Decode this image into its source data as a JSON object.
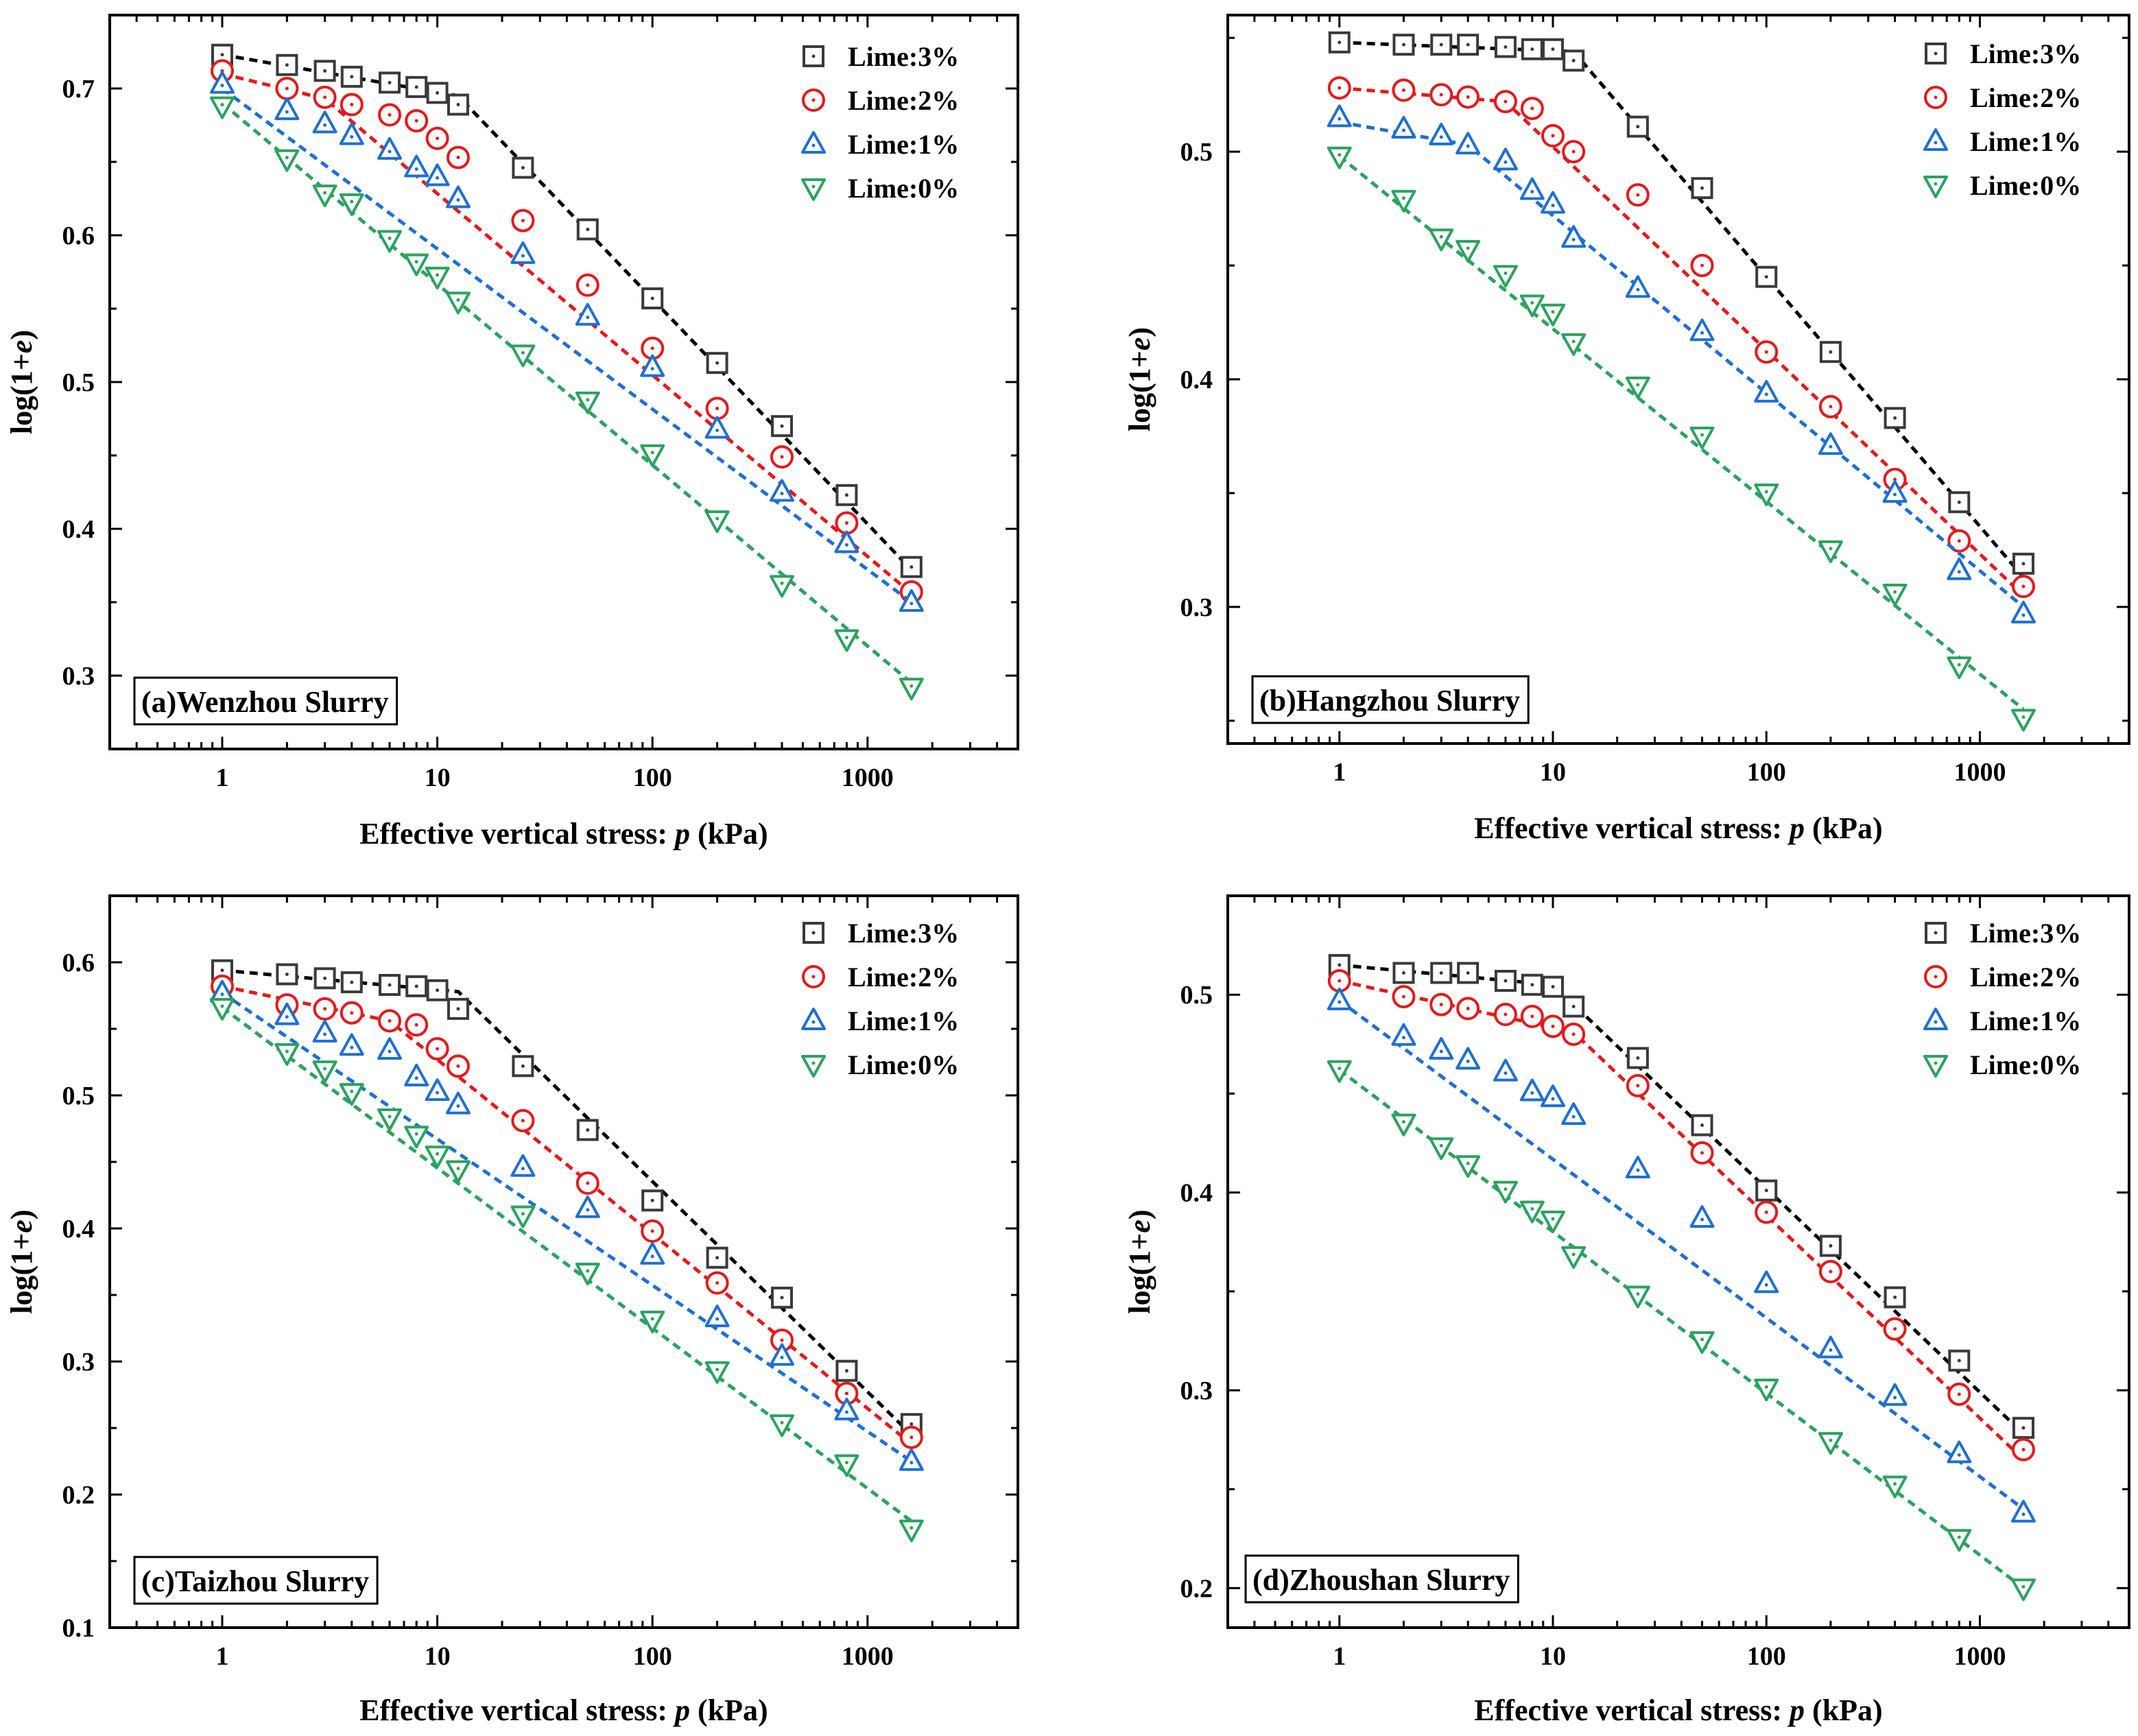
{
  "shared": {
    "xlabel_prefix": "Effective vertical stress: ",
    "xlabel_var": "p",
    "xlabel_suffix": " (kPa)",
    "ylabel_prefix": "log(1+",
    "ylabel_var": "e",
    "ylabel_suffix": ")",
    "x_ticks": [
      1,
      10,
      100,
      1000
    ],
    "x_tick_labels": [
      "1",
      "10",
      "100",
      "1000"
    ]
  },
  "styles": {
    "Lime:3%": {
      "color": "#3a3a3a",
      "line": "#000000",
      "marker": "square"
    },
    "Lime:2%": {
      "color": "#e41a1c",
      "line": "#e41a1c",
      "marker": "circle"
    },
    "Lime:1%": {
      "color": "#1f6fd1",
      "line": "#1f6fd1",
      "marker": "triangle-up"
    },
    "Lime:0%": {
      "color": "#2ca25f",
      "line": "#2ca25f",
      "marker": "triangle-down"
    }
  },
  "chart_data": [
    {
      "type": "scatter",
      "title": "(a)Wenzhou Slurry",
      "xscale": "log",
      "xlim": [
        0.3,
        5000
      ],
      "ylim": [
        0.25,
        0.75
      ],
      "y_ticks": [
        0.3,
        0.4,
        0.5,
        0.6,
        0.7
      ],
      "y_tick_labels": [
        "0.3",
        "0.4",
        "0.5",
        "0.6",
        "0.7"
      ],
      "legend": "top-right",
      "series": [
        {
          "name": "Lime:3%",
          "x": [
            1,
            2,
            3,
            4,
            6,
            8,
            10,
            12.5,
            25,
            50,
            100,
            200,
            400,
            800,
            1600
          ],
          "y": [
            0.723,
            0.716,
            0.712,
            0.708,
            0.704,
            0.701,
            0.697,
            0.689,
            0.646,
            0.604,
            0.557,
            0.513,
            0.47,
            0.423,
            0.374
          ],
          "fit": [
            [
              1,
              0.723
            ],
            [
              12.5,
              0.695
            ],
            [
              1600,
              0.372
            ]
          ]
        },
        {
          "name": "Lime:2%",
          "x": [
            1,
            2,
            3,
            4,
            6,
            8,
            10,
            12.5,
            25,
            50,
            100,
            200,
            400,
            800,
            1600
          ],
          "y": [
            0.712,
            0.7,
            0.694,
            0.689,
            0.682,
            0.678,
            0.666,
            0.653,
            0.61,
            0.566,
            0.523,
            0.482,
            0.449,
            0.404,
            0.357
          ],
          "fit": [
            [
              1,
              0.71
            ],
            [
              3,
              0.693
            ],
            [
              1600,
              0.356
            ]
          ]
        },
        {
          "name": "Lime:1%",
          "x": [
            1,
            2,
            3,
            4,
            6,
            8,
            10,
            12.5,
            25,
            50,
            100,
            200,
            400,
            800,
            1600
          ],
          "y": [
            0.703,
            0.685,
            0.676,
            0.668,
            0.658,
            0.646,
            0.64,
            0.625,
            0.587,
            0.545,
            0.51,
            0.468,
            0.425,
            0.39,
            0.35
          ],
          "fit": [
            [
              1,
              0.7
            ],
            [
              1600,
              0.35
            ]
          ]
        },
        {
          "name": "Lime:0%",
          "x": [
            1,
            2,
            3,
            4,
            6,
            8,
            10,
            12.5,
            25,
            50,
            100,
            200,
            400,
            800,
            1600
          ],
          "y": [
            0.688,
            0.652,
            0.628,
            0.622,
            0.597,
            0.581,
            0.572,
            0.555,
            0.519,
            0.487,
            0.451,
            0.406,
            0.362,
            0.325,
            0.292
          ],
          "fit": [
            [
              1,
              0.69
            ],
            [
              1600,
              0.295
            ]
          ]
        }
      ]
    },
    {
      "type": "scatter",
      "title": "(b)Hangzhou Slurry",
      "xscale": "log",
      "xlim": [
        0.3,
        5000
      ],
      "ylim": [
        0.24,
        0.56
      ],
      "y_ticks": [
        0.3,
        0.4,
        0.5
      ],
      "y_tick_labels": [
        "0.3",
        "0.4",
        "0.5"
      ],
      "legend": "top-right",
      "series": [
        {
          "name": "Lime:3%",
          "x": [
            1,
            2,
            3,
            4,
            6,
            8,
            10,
            12.5,
            25,
            50,
            100,
            200,
            400,
            800,
            1600
          ],
          "y": [
            0.548,
            0.547,
            0.547,
            0.547,
            0.546,
            0.545,
            0.545,
            0.54,
            0.511,
            0.484,
            0.445,
            0.412,
            0.383,
            0.346,
            0.319
          ],
          "fit": [
            [
              1,
              0.548
            ],
            [
              12.5,
              0.544
            ],
            [
              1600,
              0.313
            ]
          ]
        },
        {
          "name": "Lime:2%",
          "x": [
            1,
            2,
            3,
            4,
            6,
            8,
            10,
            12.5,
            25,
            50,
            100,
            200,
            400,
            800,
            1600
          ],
          "y": [
            0.528,
            0.527,
            0.525,
            0.524,
            0.522,
            0.519,
            0.507,
            0.5,
            0.481,
            0.45,
            0.412,
            0.388,
            0.356,
            0.329,
            0.309
          ],
          "fit": [
            [
              1,
              0.528
            ],
            [
              6,
              0.522
            ],
            [
              1600,
              0.305
            ]
          ]
        },
        {
          "name": "Lime:1%",
          "x": [
            1,
            2,
            3,
            4,
            6,
            8,
            10,
            12.5,
            25,
            50,
            100,
            200,
            400,
            800,
            1600
          ],
          "y": [
            0.515,
            0.51,
            0.507,
            0.503,
            0.496,
            0.483,
            0.477,
            0.462,
            0.44,
            0.421,
            0.394,
            0.371,
            0.35,
            0.316,
            0.297
          ],
          "fit": [
            [
              1,
              0.513
            ],
            [
              4,
              0.503
            ],
            [
              1600,
              0.3
            ]
          ]
        },
        {
          "name": "Lime:0%",
          "x": [
            1,
            2,
            3,
            4,
            6,
            8,
            10,
            12.5,
            25,
            50,
            100,
            200,
            400,
            800,
            1600
          ],
          "y": [
            0.498,
            0.479,
            0.462,
            0.457,
            0.446,
            0.433,
            0.429,
            0.416,
            0.397,
            0.375,
            0.35,
            0.325,
            0.306,
            0.274,
            0.251
          ],
          "fit": [
            [
              1,
              0.498
            ],
            [
              1600,
              0.255
            ]
          ]
        }
      ]
    },
    {
      "type": "scatter",
      "title": "(c)Taizhou Slurry",
      "xscale": "log",
      "xlim": [
        0.3,
        5000
      ],
      "ylim": [
        0.1,
        0.65
      ],
      "y_ticks": [
        0.1,
        0.2,
        0.3,
        0.4,
        0.5,
        0.6
      ],
      "y_tick_labels": [
        "0.1",
        "0.2",
        "0.3",
        "0.4",
        "0.5",
        "0.6"
      ],
      "legend": "top-right",
      "series": [
        {
          "name": "Lime:3%",
          "x": [
            1,
            2,
            3,
            4,
            6,
            8,
            10,
            12.5,
            25,
            50,
            100,
            200,
            400,
            800,
            1600
          ],
          "y": [
            0.594,
            0.591,
            0.588,
            0.585,
            0.583,
            0.582,
            0.579,
            0.565,
            0.522,
            0.474,
            0.421,
            0.378,
            0.348,
            0.293,
            0.253
          ],
          "fit": [
            [
              1,
              0.594
            ],
            [
              12.5,
              0.578
            ],
            [
              1600,
              0.245
            ]
          ]
        },
        {
          "name": "Lime:2%",
          "x": [
            1,
            2,
            3,
            4,
            6,
            8,
            10,
            12.5,
            25,
            50,
            100,
            200,
            400,
            800,
            1600
          ],
          "y": [
            0.582,
            0.568,
            0.565,
            0.562,
            0.556,
            0.553,
            0.535,
            0.522,
            0.481,
            0.434,
            0.398,
            0.359,
            0.316,
            0.276,
            0.243
          ],
          "fit": [
            [
              1,
              0.582
            ],
            [
              6,
              0.556
            ],
            [
              1600,
              0.238
            ]
          ]
        },
        {
          "name": "Lime:1%",
          "x": [
            1,
            2,
            3,
            4,
            6,
            8,
            10,
            12.5,
            25,
            50,
            100,
            200,
            400,
            800,
            1600
          ],
          "y": [
            0.577,
            0.56,
            0.547,
            0.537,
            0.534,
            0.514,
            0.503,
            0.493,
            0.446,
            0.415,
            0.38,
            0.333,
            0.304,
            0.263,
            0.225
          ],
          "fit": [
            [
              1,
              0.577
            ],
            [
              1600,
              0.225
            ]
          ]
        },
        {
          "name": "Lime:0%",
          "x": [
            1,
            2,
            3,
            4,
            6,
            8,
            10,
            12.5,
            25,
            50,
            100,
            200,
            400,
            800,
            1600
          ],
          "y": [
            0.566,
            0.532,
            0.519,
            0.502,
            0.483,
            0.47,
            0.455,
            0.444,
            0.41,
            0.367,
            0.331,
            0.293,
            0.253,
            0.223,
            0.174
          ],
          "fit": [
            [
              1,
              0.566
            ],
            [
              1600,
              0.18
            ]
          ]
        }
      ]
    },
    {
      "type": "scatter",
      "title": "(d)Zhoushan Slurry",
      "xscale": "log",
      "xlim": [
        0.3,
        5000
      ],
      "ylim": [
        0.18,
        0.55
      ],
      "y_ticks": [
        0.2,
        0.3,
        0.4,
        0.5
      ],
      "y_tick_labels": [
        "0.2",
        "0.3",
        "0.4",
        "0.5"
      ],
      "legend": "top-right",
      "series": [
        {
          "name": "Lime:3%",
          "x": [
            1,
            2,
            3,
            4,
            6,
            8,
            10,
            12.5,
            25,
            50,
            100,
            200,
            400,
            800,
            1600
          ],
          "y": [
            0.515,
            0.511,
            0.511,
            0.511,
            0.507,
            0.505,
            0.504,
            0.494,
            0.468,
            0.434,
            0.401,
            0.373,
            0.347,
            0.315,
            0.281
          ],
          "fit": [
            [
              1,
              0.515
            ],
            [
              10,
              0.505
            ],
            [
              1600,
              0.278
            ]
          ]
        },
        {
          "name": "Lime:2%",
          "x": [
            1,
            2,
            3,
            4,
            6,
            8,
            10,
            12.5,
            25,
            50,
            100,
            200,
            400,
            800,
            1600
          ],
          "y": [
            0.507,
            0.499,
            0.495,
            0.493,
            0.49,
            0.489,
            0.484,
            0.48,
            0.454,
            0.42,
            0.39,
            0.36,
            0.331,
            0.298,
            0.27
          ],
          "fit": [
            [
              1,
              0.507
            ],
            [
              12.5,
              0.481
            ],
            [
              1600,
              0.265
            ]
          ]
        },
        {
          "name": "Lime:1%",
          "x": [
            1,
            2,
            3,
            4,
            6,
            8,
            10,
            12.5,
            25,
            50,
            100,
            200,
            400,
            800,
            1600
          ],
          "y": [
            0.497,
            0.479,
            0.472,
            0.467,
            0.461,
            0.451,
            0.448,
            0.439,
            0.412,
            0.387,
            0.354,
            0.321,
            0.297,
            0.268,
            0.238
          ],
          "fit": [
            [
              1,
              0.497
            ],
            [
              1600,
              0.24
            ]
          ]
        },
        {
          "name": "Lime:0%",
          "x": [
            1,
            2,
            3,
            4,
            6,
            8,
            10,
            12.5,
            25,
            50,
            100,
            200,
            400,
            800,
            1600
          ],
          "y": [
            0.462,
            0.435,
            0.423,
            0.414,
            0.401,
            0.391,
            0.386,
            0.368,
            0.348,
            0.325,
            0.301,
            0.274,
            0.252,
            0.225,
            0.2
          ],
          "fit": [
            [
              1,
              0.462
            ],
            [
              1600,
              0.2
            ]
          ]
        }
      ]
    }
  ]
}
